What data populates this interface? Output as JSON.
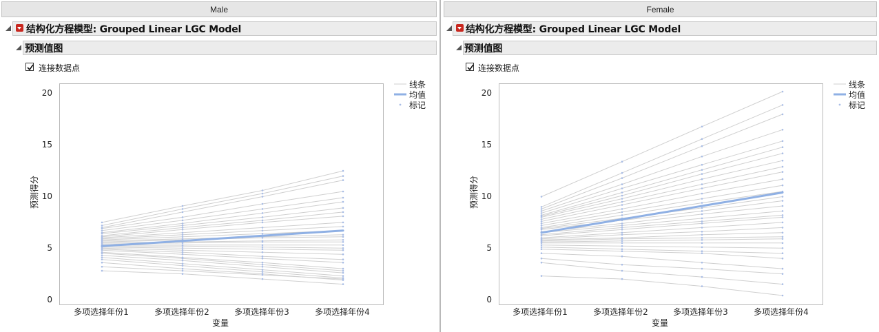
{
  "colors": {
    "mean_line": "#8fb0e4",
    "individual_line": "#cfcfcf",
    "marker": "#a9bde6",
    "menu_red": "#c8271f"
  },
  "panels": [
    {
      "group": "Male",
      "title": "结构化方程模型: Grouped Linear LGC Model",
      "section": "预测值图",
      "checkbox_label": "连接数据点",
      "checkbox_checked": true,
      "legend": [
        "线条",
        "均值",
        "标记"
      ],
      "y_ticks": [
        "20",
        "15",
        "10",
        "5",
        "0"
      ],
      "x_ticks": [
        "多项选择年份1",
        "多项选择年份2",
        "多项选择年份3",
        "多项选择年份4"
      ],
      "xlabel": "变量",
      "ylabel": "预测得分"
    },
    {
      "group": "Female",
      "title": "结构化方程模型: Grouped Linear LGC Model",
      "section": "预测值图",
      "checkbox_label": "连接数据点",
      "checkbox_checked": true,
      "legend": [
        "线条",
        "均值",
        "标记"
      ],
      "y_ticks": [
        "20",
        "15",
        "10",
        "5",
        "0"
      ],
      "x_ticks": [
        "多项选择年份1",
        "多项选择年份2",
        "多项选择年份3",
        "多项选择年份4"
      ],
      "xlabel": "变量",
      "ylabel": "预测得分"
    }
  ],
  "chart_data": [
    {
      "type": "line",
      "group": "Male",
      "categories": [
        "多项选择年份1",
        "多项选择年份2",
        "多项选择年份3",
        "多项选择年份4"
      ],
      "ylim": [
        0,
        20
      ],
      "xlabel": "变量",
      "ylabel": "预测得分",
      "legend": [
        "线条",
        "均值",
        "标记"
      ],
      "mean": [
        5.2,
        5.7,
        6.2,
        6.7
      ],
      "individual_lines": [
        [
          7.5,
          9.1,
          10.6,
          12.5
        ],
        [
          7.2,
          8.8,
          10.3,
          12.0
        ],
        [
          7.0,
          8.5,
          10.0,
          11.6
        ],
        [
          6.9,
          8.0,
          9.3,
          10.5
        ],
        [
          6.7,
          7.7,
          8.8,
          9.9
        ],
        [
          6.5,
          7.4,
          8.4,
          9.5
        ],
        [
          6.4,
          7.2,
          8.0,
          8.9
        ],
        [
          6.2,
          7.0,
          7.7,
          8.5
        ],
        [
          6.1,
          6.8,
          7.5,
          8.1
        ],
        [
          6.0,
          6.5,
          7.0,
          7.5
        ],
        [
          5.9,
          6.3,
          6.7,
          7.1
        ],
        [
          5.8,
          6.1,
          6.4,
          6.7
        ],
        [
          5.7,
          5.9,
          6.1,
          6.3
        ],
        [
          5.6,
          5.8,
          6.0,
          6.1
        ],
        [
          5.5,
          5.6,
          5.7,
          5.8
        ],
        [
          5.4,
          5.5,
          5.6,
          5.6
        ],
        [
          5.3,
          5.3,
          5.3,
          5.3
        ],
        [
          5.2,
          5.2,
          5.1,
          5.0
        ],
        [
          5.1,
          5.0,
          4.9,
          4.8
        ],
        [
          5.0,
          4.8,
          4.6,
          4.4
        ],
        [
          4.9,
          4.6,
          4.2,
          3.9
        ],
        [
          4.8,
          4.4,
          4.0,
          3.6
        ],
        [
          4.6,
          4.1,
          3.6,
          3.0
        ],
        [
          4.5,
          4.0,
          3.4,
          2.8
        ],
        [
          4.3,
          3.8,
          3.2,
          2.6
        ],
        [
          4.1,
          3.5,
          2.9,
          2.3
        ],
        [
          3.9,
          3.3,
          2.7,
          2.1
        ],
        [
          3.6,
          3.0,
          2.5,
          1.9
        ],
        [
          3.2,
          2.8,
          2.4,
          2.0
        ],
        [
          2.8,
          2.5,
          2.0,
          1.5
        ]
      ]
    },
    {
      "type": "line",
      "group": "Female",
      "categories": [
        "多项选择年份1",
        "多项选择年份2",
        "多项选择年份3",
        "多项选择年份4"
      ],
      "ylim": [
        0,
        20
      ],
      "xlabel": "变量",
      "ylabel": "预测得分",
      "legend": [
        "线条",
        "均值",
        "标记"
      ],
      "mean": [
        6.5,
        7.8,
        9.1,
        10.4
      ],
      "individual_lines": [
        [
          10.0,
          13.4,
          16.8,
          20.2
        ],
        [
          9.0,
          12.3,
          15.6,
          18.9
        ],
        [
          8.8,
          11.8,
          14.9,
          18.0
        ],
        [
          8.6,
          11.2,
          13.9,
          16.5
        ],
        [
          8.4,
          10.8,
          13.1,
          15.4
        ],
        [
          8.2,
          10.4,
          12.6,
          14.8
        ],
        [
          8.1,
          10.1,
          12.2,
          14.2
        ],
        [
          8.0,
          9.8,
          11.7,
          13.5
        ],
        [
          7.8,
          9.5,
          11.2,
          12.9
        ],
        [
          7.6,
          9.2,
          10.8,
          12.4
        ],
        [
          7.4,
          8.8,
          10.3,
          11.7
        ],
        [
          7.2,
          8.5,
          9.8,
          11.1
        ],
        [
          7.0,
          8.2,
          9.4,
          10.5
        ],
        [
          6.9,
          7.9,
          8.9,
          10.0
        ],
        [
          6.8,
          7.7,
          8.6,
          9.6
        ],
        [
          6.6,
          7.4,
          8.3,
          9.1
        ],
        [
          6.5,
          7.2,
          7.9,
          8.6
        ],
        [
          6.3,
          7.0,
          7.6,
          8.2
        ],
        [
          6.2,
          6.8,
          7.4,
          8.0
        ],
        [
          6.0,
          6.5,
          7.0,
          7.5
        ],
        [
          5.9,
          6.3,
          6.6,
          7.0
        ],
        [
          5.8,
          6.0,
          6.3,
          6.5
        ],
        [
          5.7,
          5.9,
          6.0,
          6.1
        ],
        [
          5.6,
          5.7,
          5.8,
          5.9
        ],
        [
          5.5,
          5.5,
          5.5,
          5.5
        ],
        [
          5.3,
          5.2,
          5.1,
          5.0
        ],
        [
          5.1,
          4.9,
          4.7,
          4.5
        ],
        [
          4.9,
          4.7,
          4.5,
          4.0
        ],
        [
          4.5,
          4.2,
          3.6,
          3.0
        ],
        [
          4.0,
          3.4,
          3.0,
          2.5
        ],
        [
          3.6,
          2.8,
          2.2,
          1.5
        ],
        [
          2.3,
          2.0,
          1.3,
          0.4
        ]
      ]
    }
  ]
}
